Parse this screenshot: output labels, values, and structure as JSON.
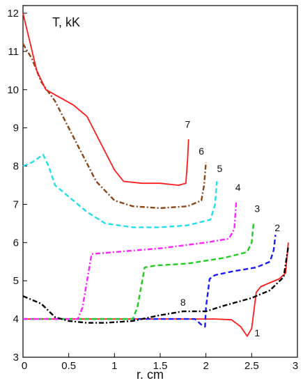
{
  "chart_data": {
    "type": "line",
    "ylabel": "T, kK",
    "xlabel": "r. cm",
    "xlim": [
      0,
      3
    ],
    "ylim": [
      3,
      12.2
    ],
    "x_ticks": [
      "0",
      "0.5",
      "1",
      "1.5",
      "2",
      "2.5",
      "3"
    ],
    "y_ticks": [
      "3",
      "4",
      "5",
      "6",
      "7",
      "8",
      "9",
      "10",
      "11",
      "12"
    ],
    "grid": false,
    "series": [
      {
        "name": "1",
        "color": "#ff1a1a",
        "dash": "solid",
        "points": [
          [
            0,
            4.0
          ],
          [
            1.5,
            4.0
          ],
          [
            2.1,
            4.0
          ],
          [
            2.28,
            3.98
          ],
          [
            2.38,
            3.8
          ],
          [
            2.45,
            3.55
          ],
          [
            2.5,
            3.75
          ],
          [
            2.55,
            4.7
          ],
          [
            2.6,
            4.85
          ],
          [
            2.7,
            4.95
          ],
          [
            2.8,
            5.05
          ],
          [
            2.87,
            5.2
          ],
          [
            2.9,
            6.0
          ]
        ]
      },
      {
        "name": "2",
        "color": "#1a1aff",
        "dash": "dash",
        "points": [
          [
            0,
            4.0
          ],
          [
            1.5,
            4.0
          ],
          [
            1.88,
            4.0
          ],
          [
            1.95,
            3.85
          ],
          [
            1.99,
            3.8
          ],
          [
            2.0,
            4.3
          ],
          [
            2.04,
            5.05
          ],
          [
            2.1,
            5.15
          ],
          [
            2.3,
            5.25
          ],
          [
            2.55,
            5.35
          ],
          [
            2.7,
            5.5
          ],
          [
            2.74,
            5.8
          ],
          [
            2.76,
            6.2
          ]
        ]
      },
      {
        "name": "3",
        "color": "#22cc22",
        "dash": "dash",
        "points": [
          [
            0,
            4.0
          ],
          [
            1.2,
            4.0
          ],
          [
            1.25,
            4.3
          ],
          [
            1.33,
            5.35
          ],
          [
            1.45,
            5.4
          ],
          [
            1.8,
            5.45
          ],
          [
            2.2,
            5.6
          ],
          [
            2.45,
            5.75
          ],
          [
            2.5,
            6.0
          ],
          [
            2.52,
            6.5
          ]
        ]
      },
      {
        "name": "4",
        "color": "#ff22ff",
        "dash": "dashdot",
        "points": [
          [
            0,
            4.0
          ],
          [
            0.6,
            4.0
          ],
          [
            0.65,
            4.3
          ],
          [
            0.75,
            5.7
          ],
          [
            1.0,
            5.75
          ],
          [
            1.5,
            5.85
          ],
          [
            2.0,
            6.0
          ],
          [
            2.25,
            6.1
          ],
          [
            2.31,
            6.35
          ],
          [
            2.33,
            7.05
          ]
        ]
      },
      {
        "name": "5",
        "color": "#22ddee",
        "dash": "dash",
        "points": [
          [
            0,
            8.0
          ],
          [
            0.1,
            8.1
          ],
          [
            0.22,
            8.3
          ],
          [
            0.28,
            8.0
          ],
          [
            0.35,
            7.5
          ],
          [
            0.5,
            7.2
          ],
          [
            0.7,
            6.8
          ],
          [
            0.9,
            6.5
          ],
          [
            1.2,
            6.4
          ],
          [
            1.5,
            6.4
          ],
          [
            1.8,
            6.45
          ],
          [
            2.05,
            6.6
          ],
          [
            2.1,
            7.0
          ],
          [
            2.12,
            7.6
          ]
        ]
      },
      {
        "name": "6",
        "color": "#8b4513",
        "dash": "dashdot",
        "points": [
          [
            0,
            11.2
          ],
          [
            0.1,
            10.8
          ],
          [
            0.2,
            10.2
          ],
          [
            0.35,
            9.7
          ],
          [
            0.5,
            9.0
          ],
          [
            0.65,
            8.3
          ],
          [
            0.8,
            7.6
          ],
          [
            1.0,
            7.1
          ],
          [
            1.2,
            6.95
          ],
          [
            1.5,
            6.9
          ],
          [
            1.8,
            6.95
          ],
          [
            1.95,
            7.1
          ],
          [
            1.98,
            7.5
          ],
          [
            2.0,
            8.1
          ]
        ]
      },
      {
        "name": "7",
        "color": "#ff1a1a",
        "dash": "solid",
        "points": [
          [
            0,
            12.0
          ],
          [
            0.05,
            11.5
          ],
          [
            0.15,
            10.5
          ],
          [
            0.25,
            10.0
          ],
          [
            0.4,
            9.8
          ],
          [
            0.55,
            9.6
          ],
          [
            0.7,
            9.3
          ],
          [
            0.85,
            8.6
          ],
          [
            1.0,
            7.9
          ],
          [
            1.1,
            7.6
          ],
          [
            1.3,
            7.55
          ],
          [
            1.5,
            7.55
          ],
          [
            1.7,
            7.5
          ],
          [
            1.78,
            7.55
          ],
          [
            1.8,
            8.2
          ],
          [
            1.81,
            8.7
          ]
        ]
      },
      {
        "name": "8",
        "color": "#000000",
        "dash": "dashdot",
        "points": [
          [
            0,
            4.6
          ],
          [
            0.2,
            4.4
          ],
          [
            0.35,
            4.05
          ],
          [
            0.5,
            3.95
          ],
          [
            0.7,
            3.9
          ],
          [
            0.9,
            3.9
          ],
          [
            1.2,
            3.95
          ],
          [
            1.5,
            4.1
          ],
          [
            1.75,
            4.2
          ],
          [
            1.9,
            4.2
          ],
          [
            2.0,
            4.2
          ],
          [
            2.2,
            4.35
          ],
          [
            2.5,
            4.55
          ],
          [
            2.7,
            4.75
          ],
          [
            2.85,
            5.1
          ],
          [
            2.9,
            5.9
          ]
        ]
      }
    ],
    "series_label_positions": [
      {
        "text": "1",
        "x": 2.56,
        "y": 3.55
      },
      {
        "text": "2",
        "x": 2.78,
        "y": 6.3
      },
      {
        "text": "3",
        "x": 2.56,
        "y": 6.8
      },
      {
        "text": "4",
        "x": 2.35,
        "y": 7.35
      },
      {
        "text": "5",
        "x": 2.15,
        "y": 7.85
      },
      {
        "text": "6",
        "x": 1.95,
        "y": 8.3
      },
      {
        "text": "7",
        "x": 1.8,
        "y": 9.0
      },
      {
        "text": "8",
        "x": 1.75,
        "y": 4.35
      }
    ]
  }
}
